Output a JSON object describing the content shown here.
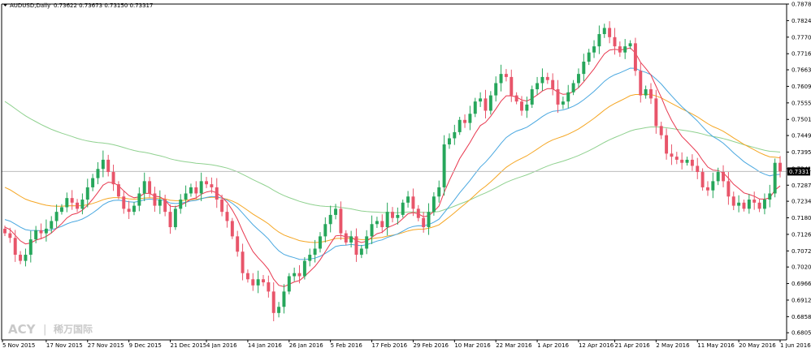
{
  "header": {
    "symbol": "AUDUSD,Daily",
    "quote": "0.73622 0.73673 0.73150 0.73317"
  },
  "watermark": {
    "brand": "ACY",
    "divider": "|",
    "cn": "稀万国际"
  },
  "colors": {
    "bull": "#26a65b",
    "bear": "#e8556a",
    "ma_fast": "#e8384f",
    "ma_mid": "#4aa8e0",
    "ma_slow": "#f5a623",
    "ma_long": "#8fd18f",
    "price_line": "#bdbdbd",
    "axis": "#000000"
  },
  "chart_data": {
    "type": "candlestick",
    "title": "AUDUSD,Daily",
    "ylim": [
      0.684,
      0.79
    ],
    "y_ticks": [
      "0.78780",
      "0.78240",
      "0.77700",
      "0.77160",
      "0.76635",
      "0.76095",
      "0.75555",
      "0.75015",
      "0.74490",
      "0.73950",
      "0.73410",
      "0.72870",
      "0.72345",
      "0.71805",
      "0.71265",
      "0.70725",
      "0.70200",
      "0.69660",
      "0.69120",
      "0.68580",
      "0.68055"
    ],
    "current_price": "0.73317",
    "x_ticks": [
      "5 Nov 2015",
      "17 Nov 2015",
      "27 Nov 2015",
      "9 Dec 2015",
      "21 Dec 2015",
      "4 Jan 2016",
      "14 Jan 2016",
      "26 Jan 2016",
      "5 Feb 2016",
      "17 Feb 2016",
      "29 Feb 2016",
      "10 Mar 2016",
      "22 Mar 2016",
      "1 Apr 2016",
      "12 Apr 2016",
      "21 Apr 2016",
      "2 May 2016",
      "11 May 2016",
      "20 May 2016",
      "1 Jun 2016"
    ],
    "close": [
      0.713,
      0.7115,
      0.706,
      0.704,
      0.706,
      0.711,
      0.714,
      0.713,
      0.7145,
      0.717,
      0.72,
      0.7215,
      0.7245,
      0.723,
      0.721,
      0.724,
      0.728,
      0.731,
      0.734,
      0.737,
      0.733,
      0.729,
      0.725,
      0.721,
      0.72,
      0.722,
      0.726,
      0.73,
      0.726,
      0.722,
      0.724,
      0.72,
      0.715,
      0.721,
      0.724,
      0.726,
      0.728,
      0.726,
      0.73,
      0.729,
      0.728,
      0.724,
      0.72,
      0.717,
      0.712,
      0.707,
      0.7,
      0.698,
      0.696,
      0.698,
      0.697,
      0.694,
      0.687,
      0.689,
      0.694,
      0.699,
      0.7,
      0.699,
      0.704,
      0.706,
      0.708,
      0.712,
      0.716,
      0.719,
      0.721,
      0.713,
      0.71,
      0.712,
      0.706,
      0.708,
      0.712,
      0.716,
      0.717,
      0.715,
      0.72,
      0.718,
      0.719,
      0.723,
      0.725,
      0.721,
      0.718,
      0.715,
      0.72,
      0.725,
      0.728,
      0.742,
      0.744,
      0.746,
      0.75,
      0.749,
      0.752,
      0.756,
      0.757,
      0.753,
      0.758,
      0.762,
      0.765,
      0.764,
      0.758,
      0.756,
      0.753,
      0.755,
      0.76,
      0.762,
      0.764,
      0.763,
      0.76,
      0.755,
      0.756,
      0.759,
      0.762,
      0.765,
      0.769,
      0.772,
      0.774,
      0.778,
      0.78,
      0.777,
      0.774,
      0.772,
      0.774,
      0.775,
      0.766,
      0.758,
      0.76,
      0.757,
      0.748,
      0.745,
      0.739,
      0.738,
      0.737,
      0.736,
      0.737,
      0.735,
      0.733,
      0.728,
      0.727,
      0.73,
      0.733,
      0.73,
      0.725,
      0.722,
      0.723,
      0.721,
      0.724,
      0.723,
      0.721,
      0.724,
      0.726,
      0.736,
      0.7332
    ]
  }
}
